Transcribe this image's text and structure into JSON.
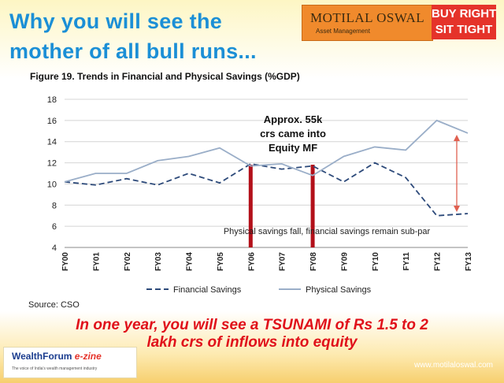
{
  "headline": {
    "line1": "Why you will see the",
    "line2": "mother of all bull runs..."
  },
  "logo": {
    "name": "MOTILAL OSWAL",
    "sub": "Asset Management",
    "tag_line1": "BUY RIGHT",
    "tag_line2": "SIT TIGHT",
    "brand_color": "#f08a2c",
    "tag_color": "#e5332a"
  },
  "figure_title": "Figure 19. Trends in Financial and Physical Savings (%GDP)",
  "chart_data": {
    "type": "line",
    "title": "Figure 19. Trends in Financial and Physical Savings (%GDP)",
    "x": [
      "FY00",
      "FY01",
      "FY02",
      "FY03",
      "FY04",
      "FY05",
      "FY06",
      "FY07",
      "FY08",
      "FY09",
      "FY10",
      "FY11",
      "FY12",
      "FY13"
    ],
    "ylim": [
      4,
      18
    ],
    "yticks": [
      4,
      6,
      8,
      10,
      12,
      14,
      16,
      18
    ],
    "grid": "horizontal",
    "legend_position": "bottom",
    "series": [
      {
        "name": "Financial Savings",
        "style": "dashed",
        "color": "#2d4a7a",
        "values": [
          10.2,
          9.9,
          10.5,
          9.9,
          11.0,
          10.1,
          11.9,
          11.4,
          11.7,
          10.2,
          12.0,
          10.6,
          7.0,
          7.2
        ]
      },
      {
        "name": "Physical Savings",
        "style": "solid",
        "color": "#9aaec8",
        "values": [
          10.2,
          11.0,
          11.0,
          12.2,
          12.6,
          13.4,
          11.7,
          11.9,
          10.8,
          12.6,
          13.5,
          13.2,
          16.0,
          14.8
        ]
      }
    ],
    "annotations": {
      "mf_note_lines": [
        "Approx. 55k",
        "crs came into",
        "Equity MF"
      ],
      "bars_at": [
        "FY06",
        "FY08"
      ],
      "bar_color": "#b3101a",
      "savings_note": "Physical savings fall, financial savings remain sub-par",
      "arrow_color": "#e06050",
      "arrow_at": "FY13",
      "arrow_range": [
        7.2,
        14.8
      ]
    }
  },
  "source": "Source: CSO",
  "tsunami": {
    "line1": "In one year, you will see a TSUNAMI of Rs 1.5 to 2",
    "line2": "lakh crs of inflows into equity"
  },
  "footer": {
    "wealthforum_name": "WealthForum",
    "wealthforum_suffix": "e-zine",
    "wealthforum_tagline": "The voice of India's wealth management industry",
    "website": "www.motilaloswal.com"
  }
}
